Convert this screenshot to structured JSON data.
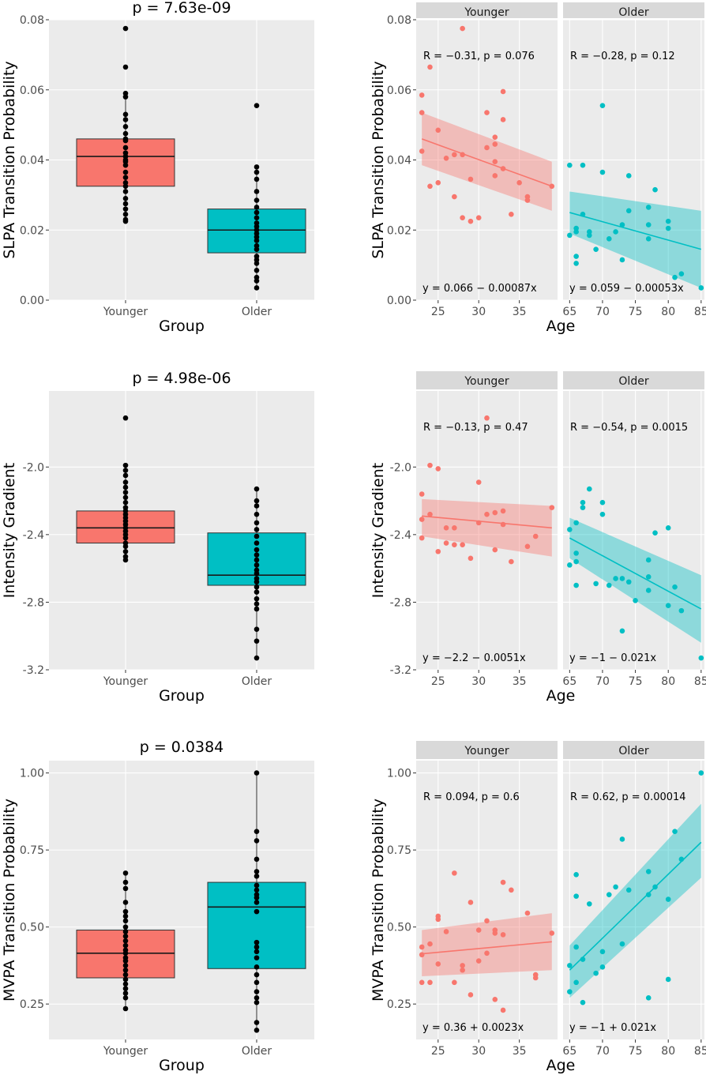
{
  "colors": {
    "younger": "#F8766D",
    "older": "#00BFC4",
    "panel": "#EBEBEB",
    "strip": "#D9D9D9",
    "grid": "#FFFFFF"
  },
  "chart_data": [
    {
      "type": "box",
      "id": "box-slpa",
      "title": "p =  7.63e-09",
      "xlabel": "Group",
      "ylabel": "SLPA Transition Probability",
      "ylim": [
        0,
        0.08
      ],
      "yticks": [
        0,
        0.02,
        0.04,
        0.06,
        0.08
      ],
      "ytick_labels": [
        "0.00",
        "0.02",
        "0.04",
        "0.06",
        "0.08"
      ],
      "categories": [
        "Younger",
        "Older"
      ],
      "boxes": [
        {
          "group": "Younger",
          "q1": 0.0325,
          "median": 0.041,
          "q3": 0.046,
          "whisker_low": 0.022,
          "whisker_high": 0.058,
          "points": [
            0.0775,
            0.0665,
            0.059,
            0.058,
            0.053,
            0.0515,
            0.0495,
            0.0475,
            0.046,
            0.0455,
            0.0435,
            0.042,
            0.041,
            0.04,
            0.0395,
            0.0385,
            0.0365,
            0.035,
            0.0335,
            0.0325,
            0.031,
            0.029,
            0.0275,
            0.026,
            0.0245,
            0.023,
            0.0225
          ]
        },
        {
          "group": "Older",
          "q1": 0.0135,
          "median": 0.02,
          "q3": 0.026,
          "whisker_low": 0.0035,
          "whisker_high": 0.038,
          "points": [
            0.0555,
            0.038,
            0.0365,
            0.0345,
            0.031,
            0.0285,
            0.0265,
            0.025,
            0.0235,
            0.022,
            0.021,
            0.02,
            0.019,
            0.018,
            0.017,
            0.0155,
            0.0145,
            0.0125,
            0.0115,
            0.0105,
            0.0085,
            0.0065,
            0.0055,
            0.0035
          ]
        }
      ]
    },
    {
      "type": "scatter",
      "id": "scat-slpa",
      "xlabel": "Age",
      "ylabel": "SLPA Transition Probability",
      "ylim": [
        0,
        0.08
      ],
      "yticks": [
        0,
        0.02,
        0.04,
        0.06,
        0.08
      ],
      "ytick_labels": [
        "0.00",
        "0.02",
        "0.04",
        "0.06",
        "0.08"
      ],
      "facets": [
        {
          "label": "Younger",
          "xlim": [
            22.3,
            39.7
          ],
          "xticks": [
            25,
            30,
            35
          ],
          "stats": "R  = −0.31,  p =  0.076",
          "equation": "y  =  0.066 − 0.00087x",
          "fit": {
            "x": [
              23,
              39
            ],
            "y": [
              0.046,
              0.0325
            ]
          },
          "band_low": [
            0.0385,
            0.0255
          ],
          "band_high": [
            0.0535,
            0.0395
          ],
          "x": [
            23,
            23,
            23,
            24,
            24,
            25,
            25,
            26,
            27,
            27,
            28,
            28,
            28,
            29,
            29,
            30,
            31,
            31,
            32,
            32,
            32,
            32,
            33,
            33,
            33,
            34,
            35,
            36,
            36,
            39
          ],
          "y": [
            0.0585,
            0.0535,
            0.0425,
            0.0665,
            0.0325,
            0.0485,
            0.0335,
            0.0405,
            0.0415,
            0.0295,
            0.0775,
            0.0415,
            0.0235,
            0.0345,
            0.0225,
            0.0235,
            0.0435,
            0.0535,
            0.0465,
            0.0445,
            0.0395,
            0.0355,
            0.0595,
            0.0515,
            0.0375,
            0.0245,
            0.0335,
            0.0295,
            0.0285,
            0.0325
          ]
        },
        {
          "label": "Older",
          "xlim": [
            64.0,
            85.5
          ],
          "xticks": [
            65,
            70,
            75,
            80,
            85
          ],
          "stats": "R  = −0.28,  p =  0.12",
          "equation": "y  =  0.059 − 0.00053x",
          "fit": {
            "x": [
              65,
              85
            ],
            "y": [
              0.025,
              0.0145
            ]
          },
          "band_low": [
            0.019,
            0.0035
          ],
          "band_high": [
            0.031,
            0.0255
          ],
          "x": [
            65,
            65,
            66,
            66,
            66,
            66,
            67,
            67,
            68,
            68,
            69,
            70,
            70,
            71,
            72,
            73,
            73,
            74,
            74,
            77,
            77,
            77,
            78,
            80,
            80,
            81,
            82,
            85
          ],
          "y": [
            0.0385,
            0.0185,
            0.0205,
            0.0195,
            0.0125,
            0.0105,
            0.0385,
            0.0245,
            0.0195,
            0.0185,
            0.0145,
            0.0555,
            0.0365,
            0.0175,
            0.0195,
            0.0215,
            0.0115,
            0.0355,
            0.0255,
            0.0265,
            0.0215,
            0.0175,
            0.0315,
            0.0225,
            0.0205,
            0.0065,
            0.0075,
            0.0035
          ]
        }
      ]
    },
    {
      "type": "box",
      "id": "box-ig",
      "title": "p =  4.98e-06",
      "xlabel": "Group",
      "ylabel": "Intensity Gradient",
      "ylim": [
        -3.2,
        -1.55
      ],
      "yticks": [
        -3.2,
        -2.8,
        -2.4,
        -2.0
      ],
      "ytick_labels": [
        "-3.2",
        "-2.8",
        "-2.4",
        "-2.0"
      ],
      "categories": [
        "Younger",
        "Older"
      ],
      "boxes": [
        {
          "group": "Younger",
          "q1": -2.45,
          "median": -2.36,
          "q3": -2.26,
          "whisker_low": -2.56,
          "whisker_high": -1.99,
          "points": [
            -1.71,
            -1.99,
            -2.02,
            -2.05,
            -2.09,
            -2.12,
            -2.15,
            -2.18,
            -2.21,
            -2.24,
            -2.26,
            -2.28,
            -2.3,
            -2.32,
            -2.34,
            -2.36,
            -2.38,
            -2.4,
            -2.42,
            -2.45,
            -2.47,
            -2.5,
            -2.53,
            -2.55
          ]
        },
        {
          "group": "Older",
          "q1": -2.7,
          "median": -2.64,
          "q3": -2.39,
          "whisker_low": -3.13,
          "whisker_high": -2.13,
          "points": [
            -2.13,
            -2.2,
            -2.23,
            -2.28,
            -2.33,
            -2.37,
            -2.41,
            -2.45,
            -2.49,
            -2.52,
            -2.55,
            -2.58,
            -2.61,
            -2.63,
            -2.66,
            -2.68,
            -2.71,
            -2.74,
            -2.78,
            -2.81,
            -2.84,
            -2.96,
            -3.03,
            -3.13
          ]
        }
      ]
    },
    {
      "type": "scatter",
      "id": "scat-ig",
      "xlabel": "Age",
      "ylabel": "Intensity Gradient",
      "ylim": [
        -3.2,
        -1.55
      ],
      "yticks": [
        -3.2,
        -2.8,
        -2.4,
        -2.0
      ],
      "ytick_labels": [
        "-3.2",
        "-2.8",
        "-2.4",
        "-2.0"
      ],
      "facets": [
        {
          "label": "Younger",
          "xlim": [
            22.3,
            39.7
          ],
          "xticks": [
            25,
            30,
            35
          ],
          "stats": "R  = −0.13,  p =  0.47",
          "equation": "y  =  −2.2 − 0.0051x",
          "fit": {
            "x": [
              23,
              39
            ],
            "y": [
              -2.29,
              -2.36
            ]
          },
          "band_low": [
            -2.41,
            -2.53
          ],
          "band_high": [
            -2.19,
            -2.23
          ],
          "x": [
            23,
            23,
            23,
            24,
            24,
            25,
            25,
            26,
            26,
            27,
            27,
            28,
            29,
            30,
            30,
            31,
            31,
            32,
            32,
            33,
            33,
            34,
            36,
            37,
            39
          ],
          "y": [
            -2.16,
            -2.31,
            -2.42,
            -1.99,
            -2.28,
            -2.01,
            -2.5,
            -2.45,
            -2.36,
            -2.46,
            -2.36,
            -2.46,
            -2.54,
            -2.09,
            -2.33,
            -1.71,
            -2.28,
            -2.27,
            -2.49,
            -2.26,
            -2.34,
            -2.56,
            -2.47,
            -2.41,
            -2.24
          ]
        },
        {
          "label": "Older",
          "xlim": [
            64.0,
            85.5
          ],
          "xticks": [
            65,
            70,
            75,
            80,
            85
          ],
          "stats": "R  = −0.54,  p =  0.0015",
          "equation": "y  =  −1 − 0.021x",
          "fit": {
            "x": [
              65,
              85
            ],
            "y": [
              -2.42,
              -2.84
            ]
          },
          "band_low": [
            -2.54,
            -3.04
          ],
          "band_high": [
            -2.3,
            -2.64
          ],
          "x": [
            65,
            65,
            66,
            66,
            66,
            66,
            67,
            67,
            68,
            69,
            70,
            70,
            71,
            72,
            73,
            73,
            74,
            75,
            77,
            77,
            77,
            78,
            80,
            80,
            81,
            82,
            85
          ],
          "y": [
            -2.37,
            -2.58,
            -2.33,
            -2.51,
            -2.56,
            -2.7,
            -2.21,
            -2.24,
            -2.13,
            -2.69,
            -2.21,
            -2.28,
            -2.7,
            -2.66,
            -2.66,
            -2.97,
            -2.68,
            -2.79,
            -2.55,
            -2.65,
            -2.73,
            -2.39,
            -2.36,
            -2.82,
            -2.71,
            -2.85,
            -3.13
          ]
        }
      ]
    },
    {
      "type": "box",
      "id": "box-mvpa",
      "title": "p =  0.0384",
      "xlabel": "Group",
      "ylabel": "MVPA Transition Probability",
      "ylim": [
        0.135,
        1.04
      ],
      "yticks": [
        0.25,
        0.5,
        0.75,
        1.0
      ],
      "ytick_labels": [
        "0.25",
        "0.50",
        "0.75",
        "1.00"
      ],
      "categories": [
        "Younger",
        "Older"
      ],
      "boxes": [
        {
          "group": "Younger",
          "q1": 0.335,
          "median": 0.415,
          "q3": 0.49,
          "whisker_low": 0.235,
          "whisker_high": 0.675,
          "points": [
            0.675,
            0.645,
            0.625,
            0.58,
            0.55,
            0.535,
            0.52,
            0.5,
            0.485,
            0.47,
            0.455,
            0.44,
            0.425,
            0.415,
            0.4,
            0.39,
            0.375,
            0.36,
            0.345,
            0.33,
            0.315,
            0.3,
            0.285,
            0.27,
            0.235
          ]
        },
        {
          "group": "Older",
          "q1": 0.365,
          "median": 0.565,
          "q3": 0.645,
          "whisker_low": 0.165,
          "whisker_high": 1.0,
          "points": [
            1.0,
            0.81,
            0.78,
            0.72,
            0.68,
            0.665,
            0.635,
            0.62,
            0.605,
            0.595,
            0.58,
            0.55,
            0.45,
            0.435,
            0.42,
            0.4,
            0.37,
            0.345,
            0.32,
            0.29,
            0.27,
            0.255,
            0.19,
            0.165
          ]
        }
      ]
    },
    {
      "type": "scatter",
      "id": "scat-mvpa",
      "xlabel": "Age",
      "ylabel": "MVPA Transition Probability",
      "ylim": [
        0.135,
        1.04
      ],
      "yticks": [
        0.25,
        0.5,
        0.75,
        1.0
      ],
      "ytick_labels": [
        "0.25",
        "0.50",
        "0.75",
        "1.00"
      ],
      "facets": [
        {
          "label": "Younger",
          "xlim": [
            22.3,
            39.7
          ],
          "xticks": [
            25,
            30,
            35
          ],
          "stats": "R  = 0.094,  p =  0.6",
          "equation": "y  =  0.36 + 0.0023x",
          "fit": {
            "x": [
              23,
              39
            ],
            "y": [
              0.413,
              0.452
            ]
          },
          "band_low": [
            0.34,
            0.36
          ],
          "band_high": [
            0.49,
            0.545
          ],
          "x": [
            23,
            23,
            23,
            24,
            24,
            25,
            25,
            25,
            26,
            27,
            27,
            28,
            28,
            29,
            29,
            30,
            30,
            31,
            31,
            32,
            32,
            32,
            33,
            33,
            33,
            34,
            36,
            37,
            37,
            39
          ],
          "y": [
            0.435,
            0.41,
            0.32,
            0.445,
            0.32,
            0.535,
            0.525,
            0.38,
            0.485,
            0.675,
            0.32,
            0.36,
            0.375,
            0.58,
            0.28,
            0.49,
            0.39,
            0.52,
            0.415,
            0.49,
            0.48,
            0.265,
            0.645,
            0.475,
            0.23,
            0.62,
            0.545,
            0.345,
            0.335,
            0.48
          ]
        },
        {
          "label": "Older",
          "xlim": [
            64.0,
            85.5
          ],
          "xticks": [
            65,
            70,
            75,
            80,
            85
          ],
          "stats": "R  = 0.62,  p =  0.00014",
          "equation": "y  =  −1 + 0.021x",
          "fit": {
            "x": [
              65,
              85
            ],
            "y": [
              0.36,
              0.775
            ]
          },
          "band_low": [
            0.27,
            0.66
          ],
          "band_high": [
            0.44,
            0.9
          ],
          "x": [
            65,
            65,
            66,
            66,
            66,
            66,
            67,
            67,
            68,
            69,
            70,
            70,
            71,
            72,
            73,
            73,
            74,
            77,
            77,
            77,
            78,
            80,
            80,
            81,
            82,
            85
          ],
          "y": [
            0.375,
            0.29,
            0.435,
            0.32,
            0.6,
            0.67,
            0.395,
            0.255,
            0.575,
            0.35,
            0.37,
            0.42,
            0.605,
            0.63,
            0.785,
            0.445,
            0.62,
            0.68,
            0.605,
            0.27,
            0.63,
            0.59,
            0.33,
            0.81,
            0.72,
            1.0
          ]
        }
      ]
    }
  ]
}
